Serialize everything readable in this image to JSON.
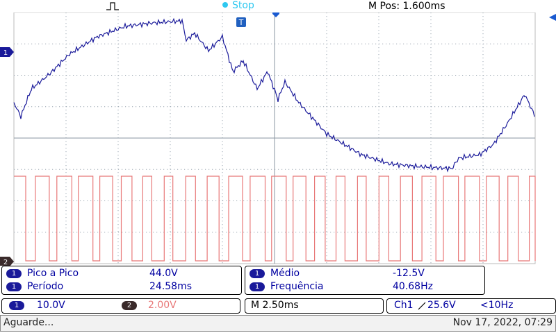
{
  "top": {
    "run_state": "Stop",
    "m_pos": "M Pos: 1.600ms"
  },
  "markers": {
    "ch1": "1",
    "ch2": "2",
    "trigger": "T"
  },
  "measurements": {
    "left": [
      {
        "label": "Pico a Pico",
        "value": "44.0V",
        "channel": "1"
      },
      {
        "label": "Período",
        "value": "24.58ms",
        "channel": "1"
      }
    ],
    "right": [
      {
        "label": "Médio",
        "value": "-12.5V",
        "channel": "1"
      },
      {
        "label": "Frequência",
        "value": "40.68Hz",
        "channel": "1"
      }
    ]
  },
  "status": {
    "ch1_badge": "1",
    "ch1_scale": "10.0V",
    "ch2_badge": "2",
    "ch2_scale": "2.00V",
    "timebase": "M 2.50ms",
    "trigger_source": "Ch1",
    "trigger_slope_icon": "rising-edge-icon",
    "trigger_level": "25.6V",
    "trigger_freq": "<10Hz"
  },
  "bottom": {
    "message": "Aguarde...",
    "datetime": "Nov 17, 2022, 07:29"
  },
  "colors": {
    "ch1": "#1a1a9a",
    "ch2": "#e87878",
    "run": "#2ec8f0",
    "grid": "#9aa6b0"
  }
}
